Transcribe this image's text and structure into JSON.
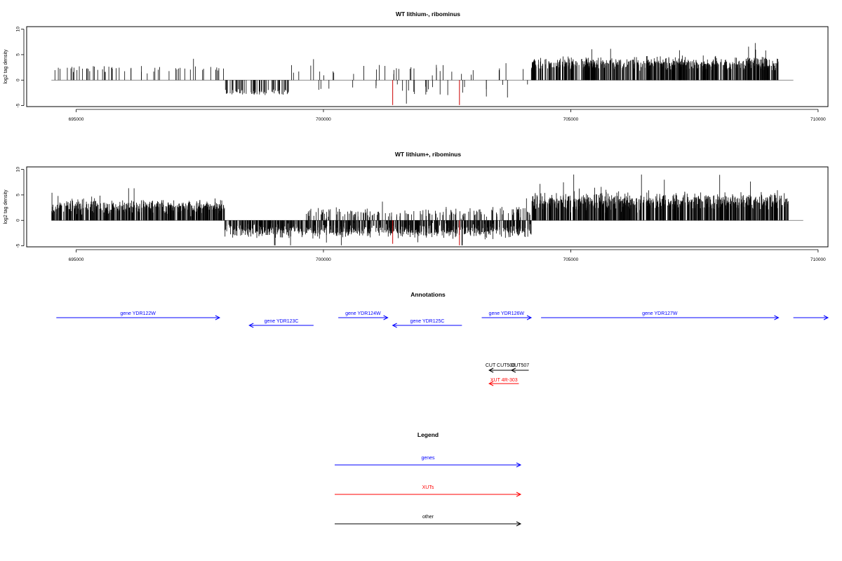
{
  "colors": {
    "genes": "#0000ff",
    "XUTs": "#ff0000",
    "other": "#000000",
    "highlight_bar": "#cc0000"
  },
  "chart_data": [
    {
      "type": "bar",
      "title": "WT lithium-, ribominus",
      "ylabel": "log2 tag density",
      "xlim": [
        694000,
        710200
      ],
      "ylim": [
        -5.2,
        10.5
      ],
      "x_ticks": [
        695000,
        700000,
        705000,
        710000
      ],
      "y_ticks": [
        -5,
        0,
        5,
        10
      ],
      "grid": false,
      "description_of_data": "per-position log2 tag density; positive = plus strand, negative = minus strand",
      "regions": [
        {
          "start": 694500,
          "end": 698000,
          "mean": 2.2,
          "sd": 0.6,
          "count": 55
        },
        {
          "start": 698000,
          "end": 699300,
          "mean": -2.4,
          "sd": 0.6,
          "count": 70
        },
        {
          "start": 699300,
          "end": 704200,
          "mean": 0.0,
          "sd": 2.0,
          "count": 60
        },
        {
          "start": 704200,
          "end": 709200,
          "mean": 3.2,
          "sd": 1.0,
          "count": 700
        }
      ],
      "highlight": [
        {
          "x": 701400,
          "y": -4.9
        },
        {
          "x": 702750,
          "y": -4.9
        }
      ]
    },
    {
      "type": "bar",
      "title": "WT lithium+, ribominus",
      "ylabel": "log2 tag density",
      "xlim": [
        694000,
        710200
      ],
      "ylim": [
        -5.2,
        10.5
      ],
      "x_ticks": [
        695000,
        700000,
        705000,
        710000
      ],
      "y_ticks": [
        -5,
        0,
        5,
        10
      ],
      "grid": false,
      "regions": [
        {
          "start": 694500,
          "end": 698000,
          "mean": 2.6,
          "sd": 1.0,
          "count": 500
        },
        {
          "start": 698000,
          "end": 704200,
          "mean": -2.0,
          "sd": 1.0,
          "count": 800
        },
        {
          "start": 699600,
          "end": 704200,
          "mean": 1.6,
          "sd": 0.8,
          "count": 160
        },
        {
          "start": 704200,
          "end": 709400,
          "mean": 3.6,
          "sd": 1.3,
          "count": 800
        }
      ],
      "highlight": [
        {
          "x": 701400,
          "y": -4.6
        },
        {
          "x": 702750,
          "y": -4.9
        }
      ]
    }
  ],
  "annotations": {
    "title": "Annotations",
    "genes": [
      {
        "label": "gene YDR122W",
        "start": 694600,
        "end": 697900,
        "strand": "+",
        "row": 0
      },
      {
        "label": "gene YDR123C",
        "start": 698500,
        "end": 699800,
        "strand": "-",
        "row": 1
      },
      {
        "label": "gene YDR124W",
        "start": 700300,
        "end": 701300,
        "strand": "+",
        "row": 0
      },
      {
        "label": "gene YDR125C",
        "start": 701400,
        "end": 702800,
        "strand": "-",
        "row": 1
      },
      {
        "label": "gene YDR126W",
        "start": 703200,
        "end": 704200,
        "strand": "+",
        "row": 0
      },
      {
        "label": "gene YDR127W",
        "start": 704400,
        "end": 709200,
        "strand": "+",
        "row": 0
      },
      {
        "label": "",
        "start": 709500,
        "end": 710200,
        "strand": "+",
        "row": 0
      }
    ],
    "others": [
      {
        "label": "CUT CUT508",
        "start": 703350,
        "end": 703800,
        "strand": "-",
        "row": 0
      },
      {
        "label": "CUT507",
        "start": 703800,
        "end": 704150,
        "strand": "-",
        "row": 0
      }
    ],
    "xuts": [
      {
        "label": "XUT 4R-303",
        "start": 703350,
        "end": 703950,
        "strand": "-",
        "row": 0
      }
    ]
  },
  "legend": {
    "title": "Legend",
    "items": [
      {
        "label": "genes",
        "color": "#0000ff"
      },
      {
        "label": "XUTs",
        "color": "#ff0000"
      },
      {
        "label": "other",
        "color": "#000000"
      }
    ]
  }
}
